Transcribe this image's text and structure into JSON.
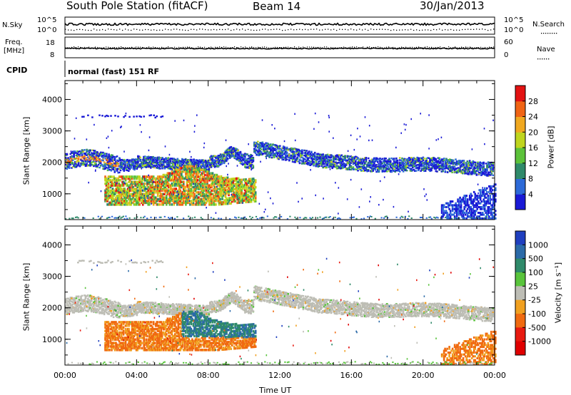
{
  "header": {
    "station": "South Pole Station (fitACF)",
    "beam": "Beam 14",
    "date": "30/Jan/2013"
  },
  "top_panel": {
    "nsky_label": "N.Sky",
    "nsky_ticks": [
      "10^5",
      "10^0"
    ],
    "nsearch_label": "N.Search",
    "nsearch_ticks": [
      "10^5",
      "10^0"
    ],
    "freq_label_line1": "Freq.",
    "freq_label_line2": "[MHz]",
    "freq_ticks": [
      "18",
      "8"
    ],
    "nave_label": "Nave",
    "nave_ticks": [
      "60",
      "0"
    ],
    "cpid_label": "CPID",
    "cpid_value": "normal (fast) 151 RF"
  },
  "chart_data": [
    {
      "type": "heatmap",
      "ylabel": "Slant Range [km]",
      "yticks": [
        "1000",
        "2000",
        "3000",
        "4000"
      ],
      "ylim": [
        180,
        4600
      ],
      "colorbar_label": "Power [dB]",
      "colorbar_ticks": [
        "4",
        "8",
        "12",
        "16",
        "20",
        "24",
        "28"
      ],
      "colorbar_colors": [
        "#1a1ad6",
        "#2d6ad8",
        "#2f8a6a",
        "#5cc23a",
        "#bfd51e",
        "#f0a820",
        "#f06414",
        "#e31212"
      ],
      "xlim_hours": [
        0,
        24
      ]
    },
    {
      "type": "heatmap",
      "ylabel": "Velocity [m s^-1]",
      "ylabel_axis": "Slant Range [km]",
      "yticks": [
        "1000",
        "2000",
        "3000",
        "4000"
      ],
      "ylim": [
        180,
        4600
      ],
      "colorbar_label": "Velocity [m s⁻¹]",
      "colorbar_ticks": [
        "1000",
        "500",
        "100",
        "25",
        "-25",
        "-100",
        "-500",
        "-1000"
      ],
      "colorbar_colors": [
        "#1f3fbf",
        "#2b6aa8",
        "#2f8a6a",
        "#59c43c",
        "#bdbdb5",
        "#f0a020",
        "#f06a10",
        "#e81a10",
        "#e00000"
      ],
      "xlim_hours": [
        0,
        24
      ]
    }
  ],
  "xaxis": {
    "ticks": [
      "00:00",
      "04:00",
      "08:00",
      "12:00",
      "16:00",
      "20:00",
      "00:00"
    ],
    "label": "Time UT"
  }
}
